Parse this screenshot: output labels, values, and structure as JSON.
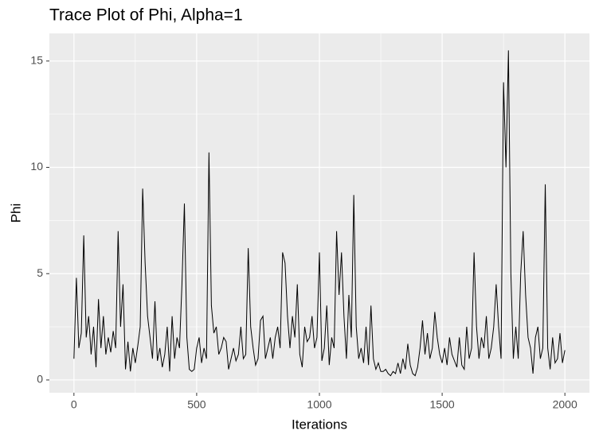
{
  "chart_data": {
    "type": "line",
    "title": "Trace Plot of Phi, Alpha=1",
    "x_label": "Iterations",
    "y_label": "Phi",
    "x": [
      0,
      10,
      20,
      30,
      40,
      50,
      60,
      70,
      80,
      90,
      100,
      110,
      120,
      130,
      140,
      150,
      160,
      170,
      180,
      190,
      200,
      210,
      220,
      230,
      240,
      250,
      260,
      270,
      280,
      290,
      300,
      310,
      320,
      330,
      340,
      350,
      360,
      370,
      380,
      390,
      400,
      410,
      420,
      430,
      440,
      450,
      460,
      470,
      480,
      490,
      500,
      510,
      520,
      530,
      540,
      550,
      560,
      570,
      580,
      590,
      600,
      610,
      620,
      630,
      640,
      650,
      660,
      670,
      680,
      690,
      700,
      710,
      720,
      730,
      740,
      750,
      760,
      770,
      780,
      790,
      800,
      810,
      820,
      830,
      840,
      850,
      860,
      870,
      880,
      890,
      900,
      910,
      920,
      930,
      940,
      950,
      960,
      970,
      980,
      990,
      1000,
      1010,
      1020,
      1030,
      1040,
      1050,
      1060,
      1070,
      1080,
      1090,
      1100,
      1110,
      1120,
      1130,
      1140,
      1150,
      1160,
      1170,
      1180,
      1190,
      1200,
      1210,
      1220,
      1230,
      1240,
      1250,
      1260,
      1270,
      1280,
      1290,
      1300,
      1310,
      1320,
      1330,
      1340,
      1350,
      1360,
      1370,
      1380,
      1390,
      1400,
      1410,
      1420,
      1430,
      1440,
      1450,
      1460,
      1470,
      1480,
      1490,
      1500,
      1510,
      1520,
      1530,
      1540,
      1550,
      1560,
      1570,
      1580,
      1590,
      1600,
      1610,
      1620,
      1630,
      1640,
      1650,
      1660,
      1670,
      1680,
      1690,
      1700,
      1710,
      1720,
      1730,
      1740,
      1750,
      1760,
      1770,
      1780,
      1790,
      1800,
      1810,
      1820,
      1830,
      1840,
      1850,
      1860,
      1870,
      1880,
      1890,
      1900,
      1910,
      1920,
      1930,
      1940,
      1950,
      1960,
      1970,
      1980,
      1990,
      2000
    ],
    "series": [
      {
        "name": "Phi",
        "color": "#000000",
        "values": [
          1.0,
          4.8,
          1.5,
          2.2,
          6.8,
          2.0,
          3.0,
          1.2,
          2.5,
          0.6,
          3.8,
          1.5,
          3.0,
          1.2,
          2.0,
          1.3,
          2.3,
          1.5,
          7.0,
          2.5,
          4.5,
          0.5,
          1.8,
          0.4,
          1.5,
          0.8,
          1.6,
          2.5,
          9.0,
          5.5,
          3.0,
          2.0,
          1.0,
          3.7,
          0.9,
          1.5,
          0.6,
          1.2,
          2.5,
          0.4,
          3.0,
          1.0,
          2.0,
          1.5,
          4.5,
          8.3,
          2.0,
          0.5,
          0.4,
          0.5,
          1.5,
          2.0,
          0.8,
          1.5,
          1.0,
          10.7,
          3.5,
          2.2,
          2.5,
          1.2,
          1.5,
          2.0,
          1.8,
          0.5,
          1.0,
          1.5,
          0.9,
          1.2,
          2.5,
          1.0,
          1.2,
          6.2,
          2.5,
          1.5,
          0.7,
          1.0,
          2.8,
          3.0,
          1.0,
          1.5,
          2.0,
          1.0,
          2.0,
          2.5,
          1.5,
          6.0,
          5.5,
          3.0,
          1.5,
          3.0,
          2.0,
          4.5,
          1.2,
          0.6,
          2.5,
          1.8,
          2.0,
          3.0,
          1.5,
          2.0,
          6.0,
          0.9,
          1.5,
          3.5,
          0.7,
          2.0,
          1.5,
          7.0,
          4.0,
          6.0,
          3.0,
          1.0,
          4.0,
          2.0,
          8.7,
          2.5,
          1.0,
          1.5,
          0.8,
          2.5,
          0.7,
          3.5,
          1.0,
          0.5,
          0.8,
          0.4,
          0.4,
          0.5,
          0.3,
          0.2,
          0.4,
          0.3,
          0.8,
          0.3,
          1.0,
          0.5,
          1.7,
          0.7,
          0.3,
          0.2,
          0.6,
          1.5,
          2.8,
          1.2,
          2.2,
          1.0,
          1.5,
          3.2,
          2.0,
          1.2,
          0.8,
          1.5,
          0.7,
          2.0,
          1.2,
          0.9,
          0.6,
          2.0,
          0.7,
          0.5,
          2.5,
          1.0,
          1.5,
          6.0,
          2.5,
          1.0,
          2.0,
          1.5,
          3.0,
          1.0,
          1.5,
          2.5,
          4.5,
          2.5,
          1.0,
          14.0,
          10.0,
          15.5,
          5.0,
          1.0,
          2.5,
          1.0,
          5.0,
          7.0,
          4.0,
          2.0,
          1.5,
          0.3,
          2.0,
          2.5,
          1.0,
          1.5,
          9.2,
          1.5,
          0.5,
          2.0,
          0.8,
          1.0,
          2.2,
          0.8,
          1.4
        ]
      }
    ],
    "xlim": [
      -100,
      2100
    ],
    "xticks": [
      0,
      500,
      1000,
      1500,
      2000
    ],
    "x_minor_ticks": [
      250,
      750,
      1250,
      1750
    ],
    "ylim": [
      -0.6,
      16.3
    ],
    "yticks": [
      0,
      5,
      10,
      15
    ],
    "y_minor_ticks": [
      2.5,
      7.5,
      12.5
    ],
    "grid": true
  }
}
